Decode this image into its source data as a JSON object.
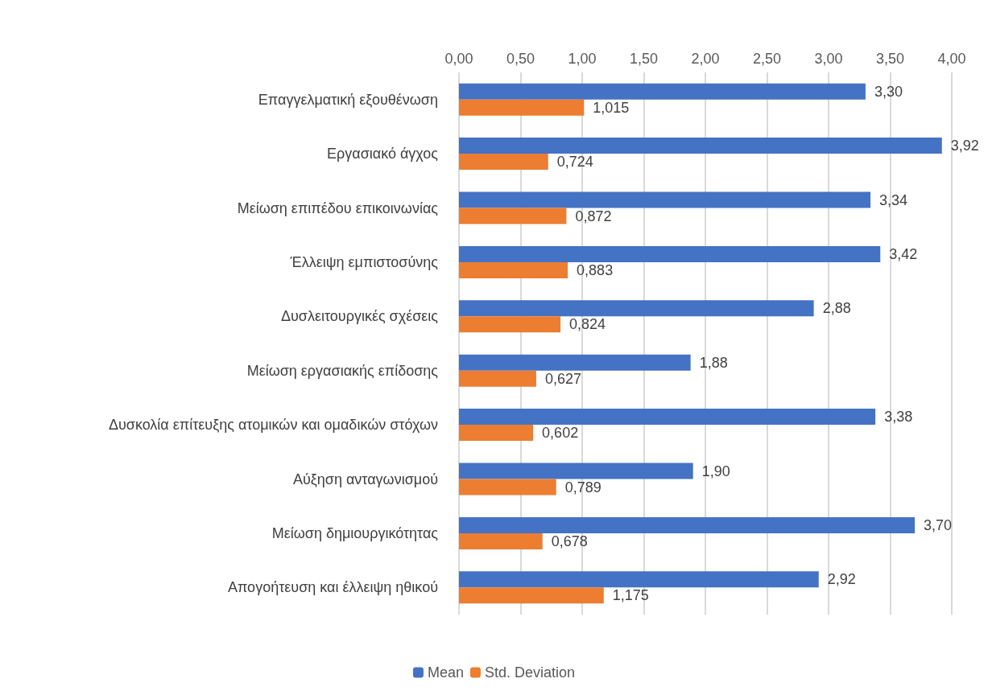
{
  "chart_data": {
    "type": "bar",
    "orientation": "horizontal",
    "categories": [
      "Επαγγελματική εξουθένωση",
      "Εργασιακό άγχος",
      "Μείωση επιπέδου επικοινωνίας",
      "Έλλειψη εμπιστοσύνης",
      "Δυσλειτουργικές σχέσεις",
      "Μείωση εργασιακής επίδοσης",
      "Δυσκολία επίτευξης ατομικών και ομαδικών στόχων",
      "Αύξηση ανταγωνισμού",
      "Μείωση δημιουργικότητας",
      "Απογοήτευση και έλλειψη ηθικού"
    ],
    "series": [
      {
        "name": "Mean",
        "color": "#4472c4",
        "values": [
          3.3,
          3.92,
          3.34,
          3.42,
          2.88,
          1.88,
          3.38,
          1.9,
          3.7,
          2.92
        ],
        "value_labels": [
          "3,30",
          "3,92",
          "3,34",
          "3,42",
          "2,88",
          "1,88",
          "3,38",
          "1,90",
          "3,70",
          "2,92"
        ]
      },
      {
        "name": "Std. Deviation",
        "color": "#ed7d31",
        "values": [
          1.015,
          0.724,
          0.872,
          0.883,
          0.824,
          0.627,
          0.602,
          0.789,
          0.678,
          1.175
        ],
        "value_labels": [
          "1,015",
          "0,724",
          "0,872",
          "0,883",
          "0,824",
          "0,627",
          "0,602",
          "0,789",
          "0,678",
          "1,175"
        ]
      }
    ],
    "xlim": [
      0,
      4
    ],
    "xticks": [
      {
        "value": 0,
        "label": "0,00"
      },
      {
        "value": 0.5,
        "label": "0,50"
      },
      {
        "value": 1,
        "label": "1,00"
      },
      {
        "value": 1.5,
        "label": "1,50"
      },
      {
        "value": 2,
        "label": "2,00"
      },
      {
        "value": 2.5,
        "label": "2,50"
      },
      {
        "value": 3,
        "label": "3,00"
      },
      {
        "value": 3.5,
        "label": "3,50"
      },
      {
        "value": 4,
        "label": "4,00"
      }
    ],
    "grid": "x",
    "legend": "bottom"
  }
}
